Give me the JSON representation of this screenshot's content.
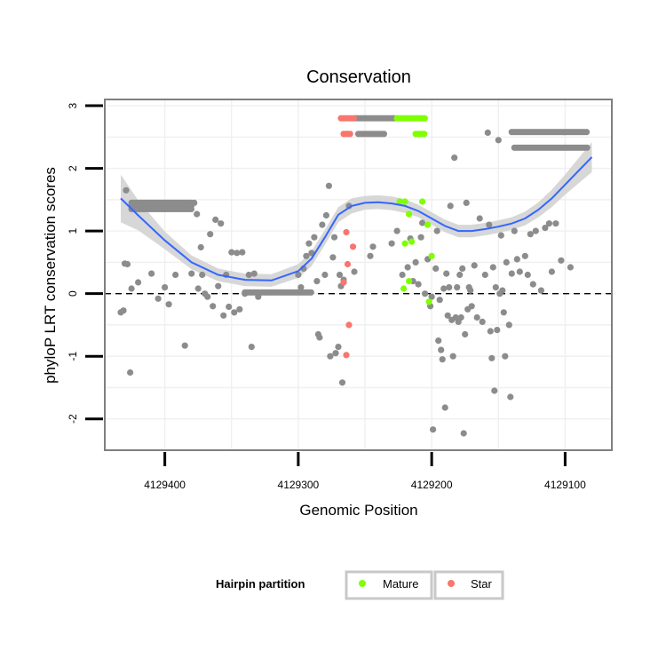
{
  "chart_data": {
    "type": "scatter",
    "title": "Conservation",
    "xlabel": "Genomic Position",
    "ylabel": "phyloP LRT conservation scores",
    "x_reversed": true,
    "xlim": [
      4129445,
      4129065
    ],
    "ylim": [
      -2.5,
      3.1
    ],
    "x_ticks": [
      4129400,
      4129300,
      4129200,
      4129100
    ],
    "x_tick_labels": [
      "4129400",
      "4129300",
      "4129200",
      "4129100"
    ],
    "y_ticks": [
      -2,
      -1,
      0,
      1,
      2,
      3
    ],
    "y_tick_labels": [
      "-2",
      "-1",
      "0",
      "1",
      "2",
      "3"
    ],
    "grid": true,
    "reference_line": {
      "y": 0,
      "style": "dashed"
    },
    "legend": {
      "title": "Hairpin partition",
      "placement": "bottom",
      "entries": [
        {
          "label": "Mature",
          "color": "#7fff00"
        },
        {
          "label": "Star",
          "color": "#f8766d"
        }
      ]
    },
    "colors": {
      "background_points": "#8c8c8c",
      "mature": "#7fff00",
      "star": "#f8766d",
      "smooth_line": "#3366ff",
      "confidence_band": "#d3d3d3"
    },
    "series": [
      {
        "name": "Background",
        "color": "#8c8c8c",
        "segments": [
          {
            "x_range": [
              4129425,
              4129380
            ],
            "y": 1.45
          },
          {
            "x_range": [
              4129425,
              4129380
            ],
            "y": 1.4
          },
          {
            "x_range": [
              4129425,
              4129380
            ],
            "y": 1.35
          },
          {
            "x_range": [
              4129340,
              4129290
            ],
            "y": 0.02
          },
          {
            "x_range": [
              4129257,
              4129228
            ],
            "y": 2.8
          },
          {
            "x_range": [
              4129255,
              4129235
            ],
            "y": 2.55
          },
          {
            "x_range": [
              4129140,
              4129083
            ],
            "y": 2.58
          },
          {
            "x_range": [
              4129138,
              4129083
            ],
            "y": 2.33
          }
        ],
        "points": [
          [
            4129433,
            -0.3
          ],
          [
            4129431,
            -0.27
          ],
          [
            4129430,
            0.48
          ],
          [
            4129428,
            0.47
          ],
          [
            4129429,
            1.65
          ],
          [
            4129426,
            -1.26
          ],
          [
            4129425,
            0.08
          ],
          [
            4129420,
            0.18
          ],
          [
            4129410,
            0.32
          ],
          [
            4129405,
            -0.08
          ],
          [
            4129400,
            0.1
          ],
          [
            4129397,
            -0.17
          ],
          [
            4129392,
            0.3
          ],
          [
            4129385,
            -0.83
          ],
          [
            4129380,
            0.32
          ],
          [
            4129378,
            1.45
          ],
          [
            4129376,
            1.27
          ],
          [
            4129375,
            0.08
          ],
          [
            4129373,
            0.74
          ],
          [
            4129372,
            0.3
          ],
          [
            4129370,
            0.0
          ],
          [
            4129368,
            -0.05
          ],
          [
            4129366,
            0.95
          ],
          [
            4129364,
            -0.2
          ],
          [
            4129362,
            1.18
          ],
          [
            4129360,
            0.12
          ],
          [
            4129358,
            1.12
          ],
          [
            4129356,
            -0.35
          ],
          [
            4129354,
            0.3
          ],
          [
            4129352,
            -0.21
          ],
          [
            4129350,
            0.66
          ],
          [
            4129348,
            -0.3
          ],
          [
            4129346,
            0.65
          ],
          [
            4129344,
            -0.25
          ],
          [
            4129342,
            0.66
          ],
          [
            4129340,
            0.0
          ],
          [
            4129337,
            0.3
          ],
          [
            4129335,
            -0.85
          ],
          [
            4129333,
            0.32
          ],
          [
            4129330,
            -0.05
          ],
          [
            4129300,
            0.3
          ],
          [
            4129298,
            0.1
          ],
          [
            4129296,
            0.4
          ],
          [
            4129294,
            0.6
          ],
          [
            4129292,
            0.8
          ],
          [
            4129290,
            0.65
          ],
          [
            4129288,
            0.9
          ],
          [
            4129286,
            0.2
          ],
          [
            4129285,
            -0.65
          ],
          [
            4129284,
            -0.7
          ],
          [
            4129282,
            1.1
          ],
          [
            4129280,
            0.3
          ],
          [
            4129279,
            1.25
          ],
          [
            4129277,
            1.72
          ],
          [
            4129276,
            -1.0
          ],
          [
            4129274,
            0.58
          ],
          [
            4129273,
            0.9
          ],
          [
            4129272,
            -0.95
          ],
          [
            4129270,
            -0.85
          ],
          [
            4129269,
            0.3
          ],
          [
            4129268,
            0.12
          ],
          [
            4129267,
            -1.42
          ],
          [
            4129266,
            0.22
          ],
          [
            4129262,
            1.4
          ],
          [
            4129258,
            0.35
          ],
          [
            4129246,
            0.6
          ],
          [
            4129244,
            0.75
          ],
          [
            4129230,
            0.8
          ],
          [
            4129226,
            1.0
          ],
          [
            4129222,
            0.3
          ],
          [
            4129218,
            0.42
          ],
          [
            4129216,
            0.88
          ],
          [
            4129214,
            0.2
          ],
          [
            4129212,
            0.5
          ],
          [
            4129210,
            0.15
          ],
          [
            4129208,
            0.9
          ],
          [
            4129207,
            1.13
          ],
          [
            4129205,
            0.0
          ],
          [
            4129203,
            0.55
          ],
          [
            4129201,
            -0.2
          ],
          [
            4129200,
            -0.05
          ],
          [
            4129199,
            -2.17
          ],
          [
            4129197,
            0.4
          ],
          [
            4129196,
            1.0
          ],
          [
            4129195,
            -0.75
          ],
          [
            4129194,
            -0.1
          ],
          [
            4129193,
            -0.9
          ],
          [
            4129192,
            -1.05
          ],
          [
            4129191,
            0.08
          ],
          [
            4129190,
            -1.82
          ],
          [
            4129189,
            0.32
          ],
          [
            4129188,
            -0.35
          ],
          [
            4129187,
            0.1
          ],
          [
            4129186,
            1.4
          ],
          [
            4129185,
            -0.42
          ],
          [
            4129184,
            -1.0
          ],
          [
            4129183,
            2.17
          ],
          [
            4129182,
            -0.38
          ],
          [
            4129181,
            0.1
          ],
          [
            4129180,
            -0.45
          ],
          [
            4129179,
            0.3
          ],
          [
            4129178,
            -0.38
          ],
          [
            4129177,
            0.4
          ],
          [
            4129176,
            -2.23
          ],
          [
            4129175,
            -0.65
          ],
          [
            4129174,
            1.45
          ],
          [
            4129173,
            -0.25
          ],
          [
            4129172,
            0.1
          ],
          [
            4129171,
            0.05
          ],
          [
            4129170,
            -0.2
          ],
          [
            4129168,
            0.45
          ],
          [
            4129166,
            -0.38
          ],
          [
            4129164,
            1.2
          ],
          [
            4129162,
            -0.45
          ],
          [
            4129160,
            0.3
          ],
          [
            4129158,
            2.57
          ],
          [
            4129157,
            1.1
          ],
          [
            4129156,
            -0.6
          ],
          [
            4129155,
            -1.03
          ],
          [
            4129154,
            0.42
          ],
          [
            4129153,
            -1.55
          ],
          [
            4129152,
            0.1
          ],
          [
            4129151,
            -0.58
          ],
          [
            4129150,
            2.45
          ],
          [
            4129149,
            0.0
          ],
          [
            4129148,
            0.93
          ],
          [
            4129147,
            0.05
          ],
          [
            4129146,
            -0.3
          ],
          [
            4129145,
            -1.0
          ],
          [
            4129144,
            0.5
          ],
          [
            4129142,
            -0.5
          ],
          [
            4129141,
            -1.65
          ],
          [
            4129140,
            0.32
          ],
          [
            4129138,
            1.0
          ],
          [
            4129136,
            0.55
          ],
          [
            4129134,
            0.35
          ],
          [
            4129130,
            0.6
          ],
          [
            4129128,
            0.3
          ],
          [
            4129126,
            0.95
          ],
          [
            4129124,
            0.15
          ],
          [
            4129122,
            1.0
          ],
          [
            4129118,
            0.05
          ],
          [
            4129115,
            1.05
          ],
          [
            4129112,
            1.12
          ],
          [
            4129110,
            0.35
          ],
          [
            4129107,
            1.12
          ],
          [
            4129103,
            0.53
          ],
          [
            4129096,
            0.42
          ]
        ]
      },
      {
        "name": "Mature",
        "color": "#7fff00",
        "segments": [
          {
            "x_range": [
              4129226,
              4129205
            ],
            "y": 2.8
          },
          {
            "x_range": [
              4129212,
              4129204
            ],
            "y": 2.55
          }
        ],
        "points": [
          [
            4129224,
            1.47
          ],
          [
            4129220,
            1.47
          ],
          [
            4129220,
            0.8
          ],
          [
            4129217,
            1.27
          ],
          [
            4129217,
            0.2
          ],
          [
            4129215,
            0.83
          ],
          [
            4129207,
            1.47
          ],
          [
            4129203,
            1.1
          ],
          [
            4129200,
            0.6
          ],
          [
            4129221,
            0.08
          ],
          [
            4129202,
            -0.13
          ]
        ]
      },
      {
        "name": "Star",
        "color": "#f8766d",
        "segments": [
          {
            "x_range": [
              4129268,
              4129258
            ],
            "y": 2.8
          },
          {
            "x_range": [
              4129266,
              4129260
            ],
            "y": 2.55
          }
        ],
        "points": [
          [
            4129264,
            0.98
          ],
          [
            4129259,
            0.75
          ],
          [
            4129263,
            0.47
          ],
          [
            4129266,
            0.18
          ],
          [
            4129262,
            -0.5
          ],
          [
            4129264,
            -0.98
          ]
        ]
      }
    ],
    "smooth": {
      "name": "loess",
      "color": "#3366ff",
      "x": [
        4129433,
        4129420,
        4129400,
        4129380,
        4129360,
        4129340,
        4129320,
        4129300,
        4129290,
        4129280,
        4129270,
        4129260,
        4129250,
        4129240,
        4129230,
        4129220,
        4129210,
        4129200,
        4129190,
        4129180,
        4129170,
        4129160,
        4129150,
        4129140,
        4129130,
        4129120,
        4129110,
        4129100,
        4129090,
        4129080
      ],
      "y": [
        1.52,
        1.25,
        0.85,
        0.5,
        0.3,
        0.22,
        0.21,
        0.36,
        0.56,
        0.9,
        1.26,
        1.4,
        1.45,
        1.46,
        1.44,
        1.4,
        1.32,
        1.2,
        1.08,
        1.0,
        1.0,
        1.03,
        1.07,
        1.12,
        1.2,
        1.34,
        1.52,
        1.74,
        1.96,
        2.18
      ],
      "se": [
        0.38,
        0.24,
        0.14,
        0.11,
        0.1,
        0.1,
        0.1,
        0.11,
        0.12,
        0.12,
        0.12,
        0.12,
        0.11,
        0.11,
        0.11,
        0.11,
        0.1,
        0.1,
        0.1,
        0.1,
        0.1,
        0.1,
        0.1,
        0.1,
        0.11,
        0.12,
        0.14,
        0.16,
        0.2,
        0.24
      ]
    }
  }
}
